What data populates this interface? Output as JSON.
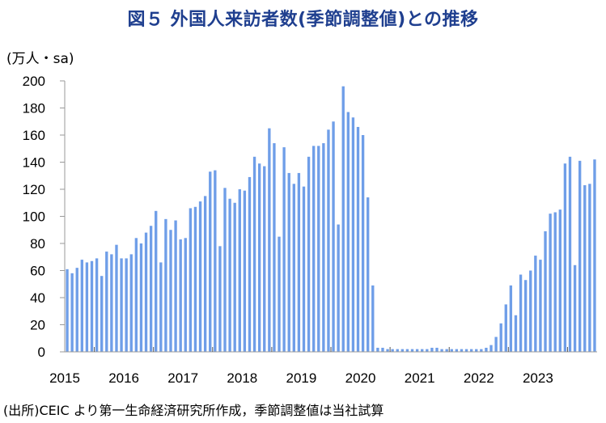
{
  "title": "図５ 外国人来訪者数(季節調整値)との推移",
  "unit_label": "(万人・sa)",
  "source_note": "(出所)CEIC より第一生命経済研究所作成，季節調整値は当社試算",
  "colors": {
    "bar": "#6f9ee8",
    "axis": "#9a9a9a",
    "grid": "#d9d9d9",
    "title": "#1f3f8f"
  },
  "chart_data": {
    "type": "bar",
    "title": "外国人来訪者数(季節調整値)",
    "ylabel": "(万人・sa)",
    "xlabel": "",
    "ylim": [
      0,
      200
    ],
    "yticks": [
      0,
      20,
      40,
      60,
      80,
      100,
      120,
      140,
      160,
      180,
      200
    ],
    "grid": false,
    "legend": "none",
    "year_labels": [
      "2015",
      "2016",
      "2017",
      "2018",
      "2019",
      "2020",
      "2021",
      "2022",
      "2023"
    ],
    "months_per_year": 12,
    "start": "2015-01",
    "values": [
      61,
      58,
      62,
      68,
      66,
      67,
      69,
      56,
      74,
      72,
      79,
      69,
      69,
      72,
      84,
      80,
      88,
      93,
      104,
      66,
      98,
      90,
      97,
      83,
      84,
      106,
      107,
      111,
      115,
      133,
      134,
      78,
      121,
      113,
      110,
      120,
      119,
      129,
      144,
      139,
      137,
      165,
      154,
      85,
      151,
      132,
      124,
      132,
      122,
      144,
      152,
      152,
      154,
      164,
      170,
      94,
      196,
      177,
      173,
      166,
      160,
      114,
      49,
      3,
      3,
      2,
      2,
      2,
      2,
      2,
      2,
      2,
      2,
      2,
      3,
      3,
      2,
      2,
      2,
      2,
      2,
      2,
      2,
      2,
      2,
      3,
      5,
      11,
      21,
      35,
      49,
      27,
      57,
      53,
      60,
      71,
      68,
      89,
      102,
      103,
      105,
      139,
      144,
      64,
      141,
      123,
      124,
      142
    ]
  }
}
